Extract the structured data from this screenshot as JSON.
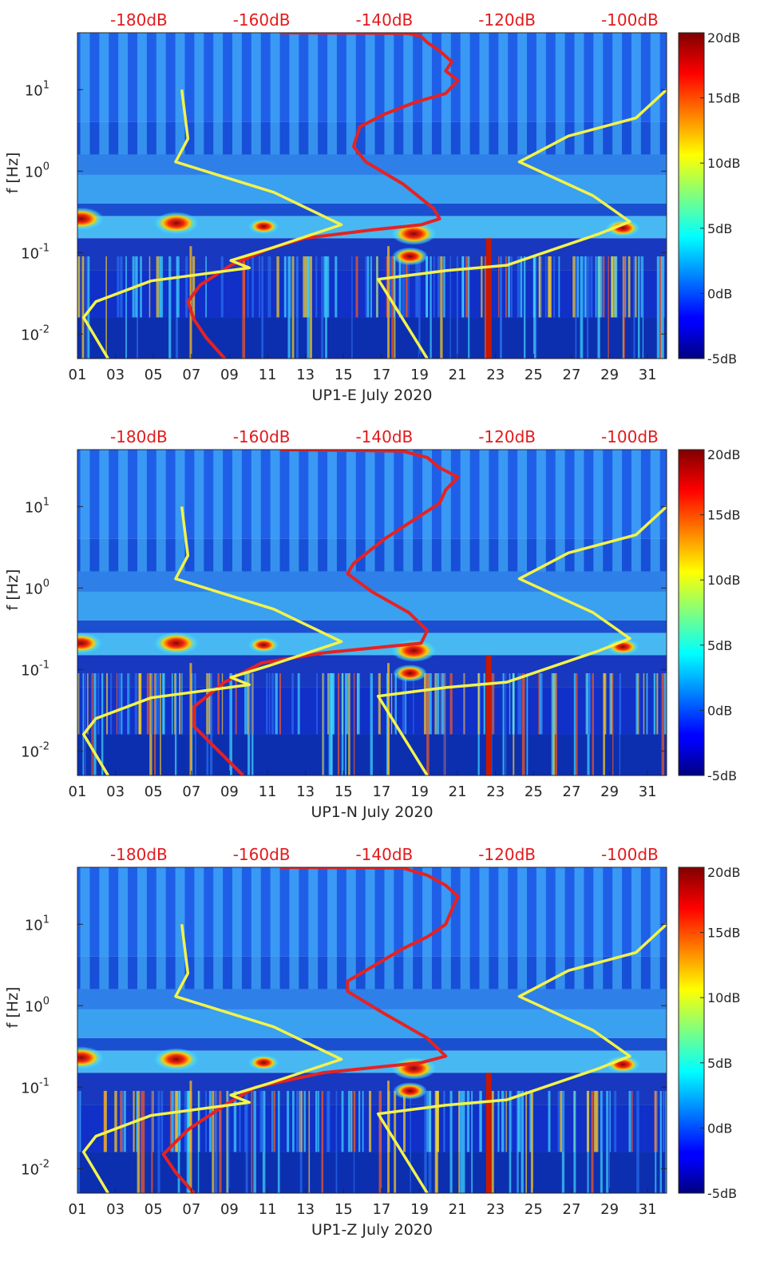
{
  "chart_data": [
    {
      "type": "heatmap",
      "xlabel": "UP1-E July 2020",
      "ylabel": "f [Hz]",
      "x_ticks": [
        "01",
        "03",
        "05",
        "07",
        "09",
        "11",
        "13",
        "15",
        "17",
        "19",
        "21",
        "23",
        "25",
        "27",
        "29",
        "31"
      ],
      "xlim_days": [
        1,
        32
      ],
      "ylim_hz": [
        0.005,
        50
      ],
      "y_scale": "log",
      "y_ticks": [
        {
          "value": 0.01,
          "base": "10",
          "exp": "-2"
        },
        {
          "value": 0.1,
          "base": "10",
          "exp": "-1"
        },
        {
          "value": 1,
          "base": "10",
          "exp": "0"
        },
        {
          "value": 10,
          "base": "10",
          "exp": "1"
        }
      ],
      "top_axis_ticks": [
        "-180dB",
        "-160dB",
        "-140dB",
        "-120dB",
        "-100dB"
      ],
      "top_axis_range_db": [
        -190,
        -94
      ],
      "colorbar": {
        "min": -5,
        "max": 20,
        "ticks": [
          "20dB",
          "15dB",
          "10dB",
          "5dB",
          "0dB",
          "-5dB"
        ]
      },
      "hot_spots": [
        {
          "day": 1.2,
          "hz": 0.26,
          "level": 1.0
        },
        {
          "day": 6.2,
          "hz": 0.23,
          "level": 1.0
        },
        {
          "day": 18.7,
          "hz": 0.17,
          "level": 1.0
        },
        {
          "day": 18.5,
          "hz": 0.09,
          "level": 0.75
        },
        {
          "day": 10.8,
          "hz": 0.21,
          "level": 0.6
        },
        {
          "day": 29.7,
          "hz": 0.2,
          "level": 0.7
        }
      ],
      "series": [
        {
          "color": "#e52222",
          "points": [
            {
              "db": -157,
              "hz": 50
            },
            {
              "db": -136,
              "hz": 49
            },
            {
              "db": -134,
              "hz": 45
            },
            {
              "db": -133,
              "hz": 38
            },
            {
              "db": -131,
              "hz": 30
            },
            {
              "db": -129,
              "hz": 22
            },
            {
              "db": -130,
              "hz": 17
            },
            {
              "db": -128,
              "hz": 13
            },
            {
              "db": -130,
              "hz": 9
            },
            {
              "db": -135,
              "hz": 7
            },
            {
              "db": -140,
              "hz": 5
            },
            {
              "db": -144,
              "hz": 3.5
            },
            {
              "db": -145,
              "hz": 2
            },
            {
              "db": -143,
              "hz": 1.3
            },
            {
              "db": -137,
              "hz": 0.7
            },
            {
              "db": -132,
              "hz": 0.35
            },
            {
              "db": -131,
              "hz": 0.26
            },
            {
              "db": -134,
              "hz": 0.22
            },
            {
              "db": -142,
              "hz": 0.19
            },
            {
              "db": -153,
              "hz": 0.15
            },
            {
              "db": -159,
              "hz": 0.11
            },
            {
              "db": -165,
              "hz": 0.07
            },
            {
              "db": -170,
              "hz": 0.04
            },
            {
              "db": -172,
              "hz": 0.025
            },
            {
              "db": -171,
              "hz": 0.015
            },
            {
              "db": -169,
              "hz": 0.009
            },
            {
              "db": -166,
              "hz": 0.005
            }
          ]
        },
        {
          "color": "#f3f34a",
          "points": [
            {
              "db": -173,
              "hz": 10
            },
            {
              "db": -172,
              "hz": 2.5
            },
            {
              "db": -174,
              "hz": 1.3
            },
            {
              "db": -158,
              "hz": 0.55
            },
            {
              "db": -147,
              "hz": 0.22
            },
            {
              "db": -159,
              "hz": 0.11
            },
            {
              "db": -165,
              "hz": 0.08
            },
            {
              "db": -162,
              "hz": 0.065
            },
            {
              "db": -178,
              "hz": 0.045
            },
            {
              "db": -187,
              "hz": 0.025
            },
            {
              "db": -189,
              "hz": 0.016
            },
            {
              "db": -185,
              "hz": 0.005
            }
          ]
        },
        {
          "color": "#f3f34a",
          "points": [
            {
              "db": -94,
              "hz": 10
            },
            {
              "db": -99,
              "hz": 4.5
            },
            {
              "db": -110,
              "hz": 2.7
            },
            {
              "db": -118,
              "hz": 1.3
            },
            {
              "db": -106,
              "hz": 0.5
            },
            {
              "db": -100,
              "hz": 0.24
            },
            {
              "db": -105,
              "hz": 0.17
            },
            {
              "db": -120,
              "hz": 0.07
            },
            {
              "db": -130,
              "hz": 0.06
            },
            {
              "db": -141,
              "hz": 0.047
            },
            {
              "db": -133,
              "hz": 0.005
            }
          ]
        }
      ]
    },
    {
      "type": "heatmap",
      "xlabel": "UP1-N July 2020",
      "ylabel": "f [Hz]",
      "x_ticks": [
        "01",
        "03",
        "05",
        "07",
        "09",
        "11",
        "13",
        "15",
        "17",
        "19",
        "21",
        "23",
        "25",
        "27",
        "29",
        "31"
      ],
      "xlim_days": [
        1,
        32
      ],
      "ylim_hz": [
        0.005,
        50
      ],
      "y_scale": "log",
      "y_ticks": [
        {
          "value": 0.01,
          "base": "10",
          "exp": "-2"
        },
        {
          "value": 0.1,
          "base": "10",
          "exp": "-1"
        },
        {
          "value": 1,
          "base": "10",
          "exp": "0"
        },
        {
          "value": 10,
          "base": "10",
          "exp": "1"
        }
      ],
      "top_axis_ticks": [
        "-180dB",
        "-160dB",
        "-140dB",
        "-120dB",
        "-100dB"
      ],
      "top_axis_range_db": [
        -190,
        -94
      ],
      "colorbar": {
        "min": -5,
        "max": 20,
        "ticks": [
          "20dB",
          "15dB",
          "10dB",
          "5dB",
          "0dB",
          "-5dB"
        ]
      },
      "hot_spots": [
        {
          "day": 1.2,
          "hz": 0.21,
          "level": 0.9
        },
        {
          "day": 6.2,
          "hz": 0.21,
          "level": 1.0
        },
        {
          "day": 18.7,
          "hz": 0.17,
          "level": 1.0
        },
        {
          "day": 18.5,
          "hz": 0.09,
          "level": 0.7
        },
        {
          "day": 10.8,
          "hz": 0.2,
          "level": 0.6
        },
        {
          "day": 29.7,
          "hz": 0.19,
          "level": 0.65
        }
      ],
      "series": [
        {
          "color": "#e52222",
          "points": [
            {
              "db": -157,
              "hz": 50
            },
            {
              "db": -137,
              "hz": 48
            },
            {
              "db": -133,
              "hz": 40
            },
            {
              "db": -131,
              "hz": 30
            },
            {
              "db": -128,
              "hz": 23
            },
            {
              "db": -130,
              "hz": 16
            },
            {
              "db": -131,
              "hz": 11
            },
            {
              "db": -135,
              "hz": 7
            },
            {
              "db": -140,
              "hz": 4
            },
            {
              "db": -145,
              "hz": 2
            },
            {
              "db": -146,
              "hz": 1.5
            },
            {
              "db": -142,
              "hz": 0.9
            },
            {
              "db": -136,
              "hz": 0.5
            },
            {
              "db": -133,
              "hz": 0.3
            },
            {
              "db": -134,
              "hz": 0.21
            },
            {
              "db": -150,
              "hz": 0.16
            },
            {
              "db": -160,
              "hz": 0.12
            },
            {
              "db": -166,
              "hz": 0.07
            },
            {
              "db": -171,
              "hz": 0.035
            },
            {
              "db": -171,
              "hz": 0.02
            },
            {
              "db": -167,
              "hz": 0.01
            },
            {
              "db": -163,
              "hz": 0.005
            }
          ]
        },
        {
          "color": "#f3f34a",
          "points": [
            {
              "db": -173,
              "hz": 10
            },
            {
              "db": -172,
              "hz": 2.5
            },
            {
              "db": -174,
              "hz": 1.3
            },
            {
              "db": -158,
              "hz": 0.55
            },
            {
              "db": -147,
              "hz": 0.22
            },
            {
              "db": -159,
              "hz": 0.11
            },
            {
              "db": -165,
              "hz": 0.08
            },
            {
              "db": -162,
              "hz": 0.065
            },
            {
              "db": -178,
              "hz": 0.045
            },
            {
              "db": -187,
              "hz": 0.025
            },
            {
              "db": -189,
              "hz": 0.016
            },
            {
              "db": -185,
              "hz": 0.005
            }
          ]
        },
        {
          "color": "#f3f34a",
          "points": [
            {
              "db": -94,
              "hz": 10
            },
            {
              "db": -99,
              "hz": 4.5
            },
            {
              "db": -110,
              "hz": 2.7
            },
            {
              "db": -118,
              "hz": 1.3
            },
            {
              "db": -106,
              "hz": 0.5
            },
            {
              "db": -100,
              "hz": 0.24
            },
            {
              "db": -105,
              "hz": 0.17
            },
            {
              "db": -120,
              "hz": 0.07
            },
            {
              "db": -130,
              "hz": 0.06
            },
            {
              "db": -141,
              "hz": 0.047
            },
            {
              "db": -133,
              "hz": 0.005
            }
          ]
        }
      ]
    },
    {
      "type": "heatmap",
      "xlabel": "UP1-Z July 2020",
      "ylabel": "f [Hz]",
      "x_ticks": [
        "01",
        "03",
        "05",
        "07",
        "09",
        "11",
        "13",
        "15",
        "17",
        "19",
        "21",
        "23",
        "25",
        "27",
        "29",
        "31"
      ],
      "xlim_days": [
        1,
        32
      ],
      "ylim_hz": [
        0.005,
        50
      ],
      "y_scale": "log",
      "y_ticks": [
        {
          "value": 0.01,
          "base": "10",
          "exp": "-2"
        },
        {
          "value": 0.1,
          "base": "10",
          "exp": "-1"
        },
        {
          "value": 1,
          "base": "10",
          "exp": "0"
        },
        {
          "value": 10,
          "base": "10",
          "exp": "1"
        }
      ],
      "top_axis_ticks": [
        "-180dB",
        "-160dB",
        "-140dB",
        "-120dB",
        "-100dB"
      ],
      "top_axis_range_db": [
        -190,
        -94
      ],
      "colorbar": {
        "min": -5,
        "max": 20,
        "ticks": [
          "20dB",
          "15dB",
          "10dB",
          "5dB",
          "0dB",
          "-5dB"
        ]
      },
      "hot_spots": [
        {
          "day": 1.2,
          "hz": 0.23,
          "level": 1.0
        },
        {
          "day": 6.2,
          "hz": 0.22,
          "level": 1.0
        },
        {
          "day": 18.7,
          "hz": 0.17,
          "level": 1.0
        },
        {
          "day": 18.5,
          "hz": 0.09,
          "level": 0.7
        },
        {
          "day": 10.8,
          "hz": 0.2,
          "level": 0.6
        },
        {
          "day": 29.7,
          "hz": 0.19,
          "level": 0.7
        }
      ],
      "series": [
        {
          "color": "#e52222",
          "points": [
            {
              "db": -157,
              "hz": 50
            },
            {
              "db": -137,
              "hz": 49
            },
            {
              "db": -133,
              "hz": 40
            },
            {
              "db": -130,
              "hz": 30
            },
            {
              "db": -128,
              "hz": 22
            },
            {
              "db": -129,
              "hz": 15
            },
            {
              "db": -130,
              "hz": 10
            },
            {
              "db": -133,
              "hz": 7
            },
            {
              "db": -137,
              "hz": 5
            },
            {
              "db": -142,
              "hz": 3
            },
            {
              "db": -146,
              "hz": 2
            },
            {
              "db": -146,
              "hz": 1.5
            },
            {
              "db": -140,
              "hz": 0.8
            },
            {
              "db": -133,
              "hz": 0.4
            },
            {
              "db": -130,
              "hz": 0.24
            },
            {
              "db": -134,
              "hz": 0.2
            },
            {
              "db": -150,
              "hz": 0.15
            },
            {
              "db": -161,
              "hz": 0.1
            },
            {
              "db": -166,
              "hz": 0.06
            },
            {
              "db": -172,
              "hz": 0.03
            },
            {
              "db": -176,
              "hz": 0.015
            },
            {
              "db": -174,
              "hz": 0.009
            },
            {
              "db": -171,
              "hz": 0.005
            }
          ]
        },
        {
          "color": "#f3f34a",
          "points": [
            {
              "db": -173,
              "hz": 10
            },
            {
              "db": -172,
              "hz": 2.5
            },
            {
              "db": -174,
              "hz": 1.3
            },
            {
              "db": -158,
              "hz": 0.55
            },
            {
              "db": -147,
              "hz": 0.22
            },
            {
              "db": -159,
              "hz": 0.11
            },
            {
              "db": -165,
              "hz": 0.08
            },
            {
              "db": -162,
              "hz": 0.065
            },
            {
              "db": -178,
              "hz": 0.045
            },
            {
              "db": -187,
              "hz": 0.025
            },
            {
              "db": -189,
              "hz": 0.016
            },
            {
              "db": -185,
              "hz": 0.005
            }
          ]
        },
        {
          "color": "#f3f34a",
          "points": [
            {
              "db": -94,
              "hz": 10
            },
            {
              "db": -99,
              "hz": 4.5
            },
            {
              "db": -110,
              "hz": 2.7
            },
            {
              "db": -118,
              "hz": 1.3
            },
            {
              "db": -106,
              "hz": 0.5
            },
            {
              "db": -100,
              "hz": 0.24
            },
            {
              "db": -105,
              "hz": 0.17
            },
            {
              "db": -120,
              "hz": 0.07
            },
            {
              "db": -130,
              "hz": 0.06
            },
            {
              "db": -141,
              "hz": 0.047
            },
            {
              "db": -133,
              "hz": 0.005
            }
          ]
        }
      ]
    }
  ]
}
